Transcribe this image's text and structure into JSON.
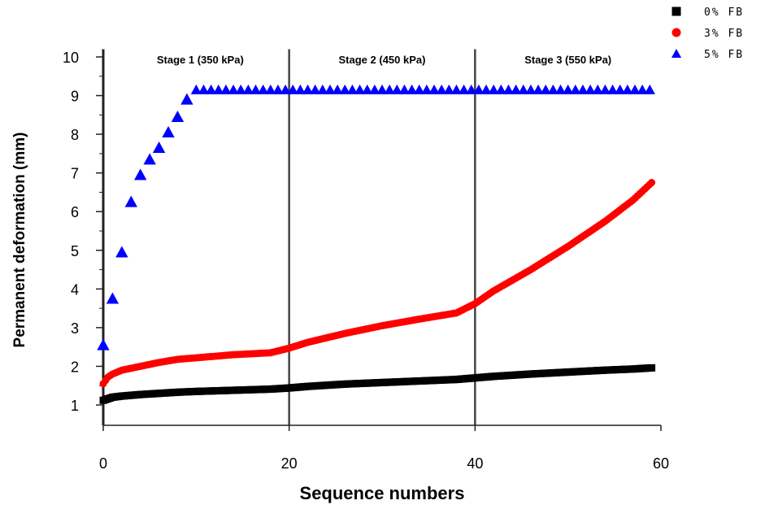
{
  "chart_data": {
    "type": "scatter",
    "xlabel": "Sequence numbers",
    "ylabel": "Permanent deformation (mm)",
    "xlim": [
      0,
      60
    ],
    "ylim": [
      0.5,
      10.2
    ],
    "xticks": [
      "0",
      "20",
      "40",
      "60"
    ],
    "yticks": [
      "1",
      "2",
      "3",
      "4",
      "5",
      "6",
      "7",
      "8",
      "9",
      "10"
    ],
    "stages": [
      {
        "label": "Stage 1 (350 kPa)",
        "x_start": 0,
        "x_end": 20
      },
      {
        "label": "Stage 2 (450 kPa)",
        "x_start": 20,
        "x_end": 40
      },
      {
        "label": "Stage 3 (550 kPa)",
        "x_start": 40,
        "x_end": 60
      }
    ],
    "stage_boundaries": [
      20,
      40
    ],
    "legend_position": "top-right",
    "series": [
      {
        "name": "0% FB",
        "marker": "square",
        "color": "#000000",
        "points": [
          [
            0,
            1.12
          ],
          [
            1,
            1.2
          ],
          [
            2,
            1.23
          ],
          [
            4,
            1.27
          ],
          [
            6,
            1.3
          ],
          [
            8,
            1.33
          ],
          [
            10,
            1.35
          ],
          [
            14,
            1.38
          ],
          [
            18,
            1.41
          ],
          [
            20,
            1.44
          ],
          [
            22,
            1.48
          ],
          [
            26,
            1.54
          ],
          [
            30,
            1.58
          ],
          [
            34,
            1.62
          ],
          [
            38,
            1.66
          ],
          [
            40,
            1.7
          ],
          [
            42,
            1.74
          ],
          [
            46,
            1.8
          ],
          [
            50,
            1.85
          ],
          [
            54,
            1.9
          ],
          [
            57,
            1.93
          ],
          [
            59,
            1.96
          ]
        ]
      },
      {
        "name": "3% FB",
        "marker": "circle",
        "color": "#ff0000",
        "points": [
          [
            0,
            1.55
          ],
          [
            0.5,
            1.72
          ],
          [
            1,
            1.8
          ],
          [
            2,
            1.9
          ],
          [
            4,
            2.0
          ],
          [
            6,
            2.1
          ],
          [
            8,
            2.18
          ],
          [
            10,
            2.22
          ],
          [
            14,
            2.3
          ],
          [
            18,
            2.35
          ],
          [
            20,
            2.47
          ],
          [
            22,
            2.62
          ],
          [
            26,
            2.85
          ],
          [
            30,
            3.05
          ],
          [
            34,
            3.22
          ],
          [
            38,
            3.38
          ],
          [
            40,
            3.62
          ],
          [
            42,
            3.95
          ],
          [
            46,
            4.5
          ],
          [
            50,
            5.1
          ],
          [
            54,
            5.75
          ],
          [
            57,
            6.3
          ],
          [
            59,
            6.75
          ]
        ]
      },
      {
        "name": "5% FB",
        "marker": "triangle",
        "color": "#0000ff",
        "points": [
          [
            0,
            2.55
          ],
          [
            1,
            3.75
          ],
          [
            2,
            4.95
          ],
          [
            3,
            6.25
          ],
          [
            4,
            6.95
          ],
          [
            5,
            7.35
          ],
          [
            6,
            7.65
          ],
          [
            7,
            8.05
          ],
          [
            8,
            8.45
          ],
          [
            9,
            8.9
          ],
          [
            10,
            9.15
          ],
          [
            20,
            9.15
          ],
          [
            40,
            9.15
          ],
          [
            59,
            9.15
          ]
        ]
      }
    ]
  }
}
